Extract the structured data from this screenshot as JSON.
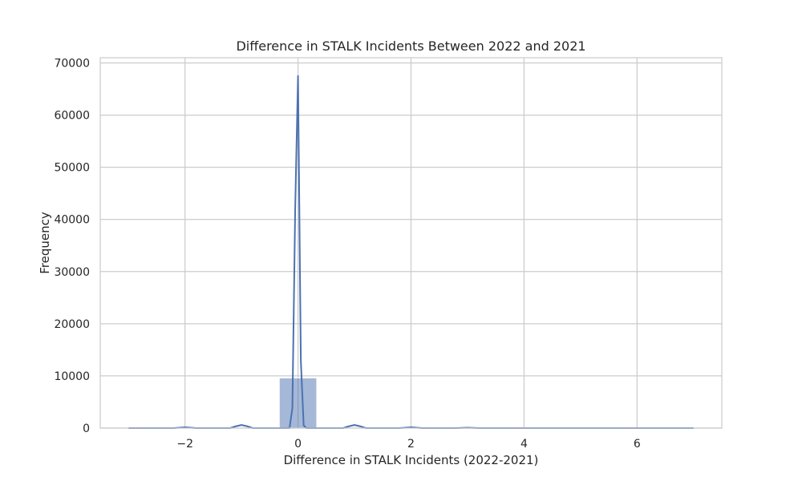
{
  "chart_data": {
    "type": "bar",
    "title": "Difference in STALK Incidents Between 2022 and 2021",
    "xlabel": "Difference in STALK Incidents (2022-2021)",
    "ylabel": "Frequency",
    "xlim": [
      -3.5,
      7.5
    ],
    "ylim": [
      0,
      71000
    ],
    "grid": true,
    "xticks": [
      -2,
      0,
      2,
      4,
      6
    ],
    "xtick_labels": [
      "−2",
      "0",
      "2",
      "4",
      "6"
    ],
    "yticks": [
      0,
      10000,
      20000,
      30000,
      40000,
      50000,
      60000,
      70000
    ],
    "ytick_labels": [
      "0",
      "10000",
      "20000",
      "30000",
      "40000",
      "50000",
      "60000",
      "70000"
    ],
    "histogram": {
      "color": "#4c72b0",
      "bins": [
        {
          "x0": -3.0,
          "x1": -2.33,
          "count": 20
        },
        {
          "x0": -2.33,
          "x1": -1.67,
          "count": 10
        },
        {
          "x0": -1.67,
          "x1": -1.0,
          "count": 20
        },
        {
          "x0": -1.0,
          "x1": -0.33,
          "count": 20
        },
        {
          "x0": -0.33,
          "x1": 0.33,
          "count": 9600
        },
        {
          "x0": 0.33,
          "x1": 1.0,
          "count": 20
        },
        {
          "x0": 1.0,
          "x1": 1.67,
          "count": 20
        },
        {
          "x0": 1.67,
          "x1": 2.33,
          "count": 10
        },
        {
          "x0": 2.33,
          "x1": 3.0,
          "count": 10
        },
        {
          "x0": 3.0,
          "x1": 3.67,
          "count": 10
        },
        {
          "x0": 3.67,
          "x1": 4.33,
          "count": 10
        },
        {
          "x0": 4.33,
          "x1": 5.0,
          "count": 5
        },
        {
          "x0": 5.0,
          "x1": 5.67,
          "count": 5
        },
        {
          "x0": 5.67,
          "x1": 6.33,
          "count": 5
        },
        {
          "x0": 6.33,
          "x1": 7.0,
          "count": 5
        }
      ]
    },
    "kde": {
      "color": "#4c72b0",
      "points": [
        [
          -3.0,
          0
        ],
        [
          -2.2,
          0
        ],
        [
          -2.0,
          150
        ],
        [
          -1.8,
          0
        ],
        [
          -1.2,
          0
        ],
        [
          -1.1,
          350
        ],
        [
          -1.0,
          600
        ],
        [
          -0.9,
          350
        ],
        [
          -0.8,
          0
        ],
        [
          -0.15,
          0
        ],
        [
          -0.1,
          3800
        ],
        [
          -0.05,
          42000
        ],
        [
          0.0,
          67500
        ],
        [
          0.05,
          13000
        ],
        [
          0.1,
          500
        ],
        [
          0.15,
          0
        ],
        [
          0.8,
          0
        ],
        [
          0.9,
          350
        ],
        [
          1.0,
          600
        ],
        [
          1.1,
          350
        ],
        [
          1.2,
          0
        ],
        [
          1.8,
          0
        ],
        [
          2.0,
          150
        ],
        [
          2.2,
          0
        ],
        [
          2.8,
          0
        ],
        [
          3.0,
          80
        ],
        [
          3.2,
          0
        ],
        [
          7.0,
          0
        ]
      ]
    }
  }
}
